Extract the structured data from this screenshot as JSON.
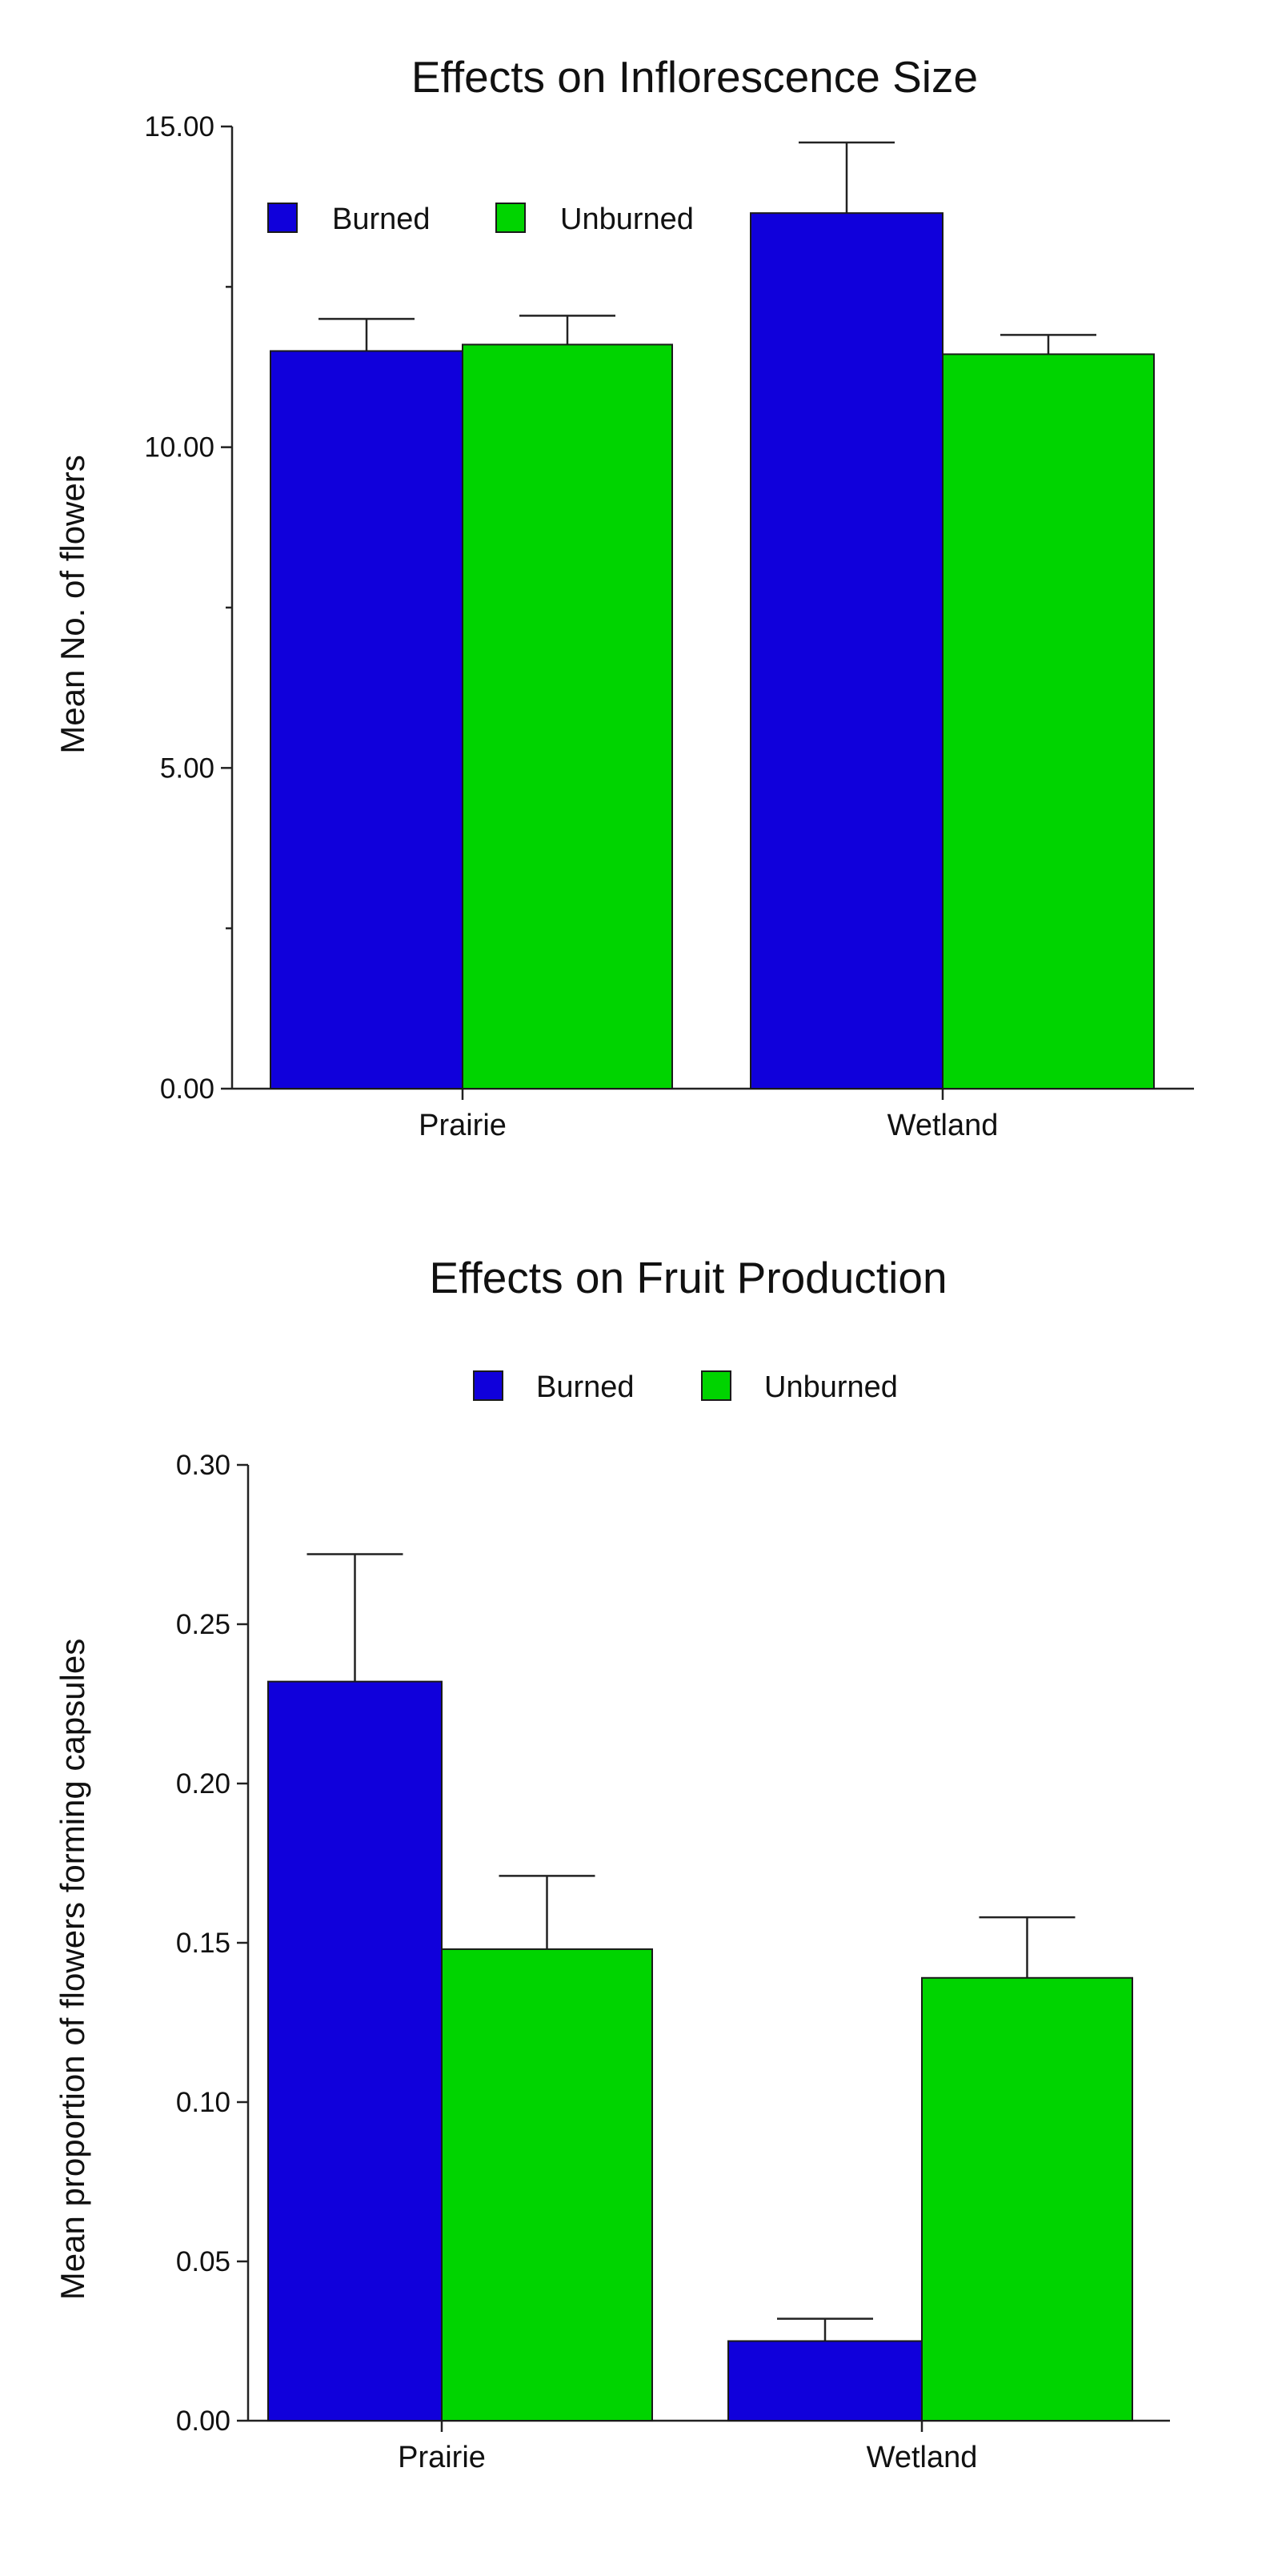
{
  "chart_data": [
    {
      "type": "bar",
      "title": "Effects on Inflorescence Size",
      "ylabel": "Mean No. of flowers",
      "xlabel": "",
      "categories": [
        "Prairie",
        "Wetland"
      ],
      "ylim": [
        0,
        15
      ],
      "yticks": [
        0,
        5,
        10,
        15
      ],
      "ytick_labels": [
        "0.00",
        "5.00",
        "10.00",
        "15.00"
      ],
      "legend_position": "top-left",
      "series": [
        {
          "name": "Burned",
          "color": "#1000db",
          "values": [
            11.5,
            13.65
          ],
          "errors": [
            0.5,
            1.1
          ]
        },
        {
          "name": "Unburned",
          "color": "#00d400",
          "values": [
            11.6,
            11.45
          ],
          "errors": [
            0.45,
            0.3
          ]
        }
      ]
    },
    {
      "type": "bar",
      "title": "Effects on Fruit Production",
      "ylabel": "Mean proportion of flowers forming capsules",
      "xlabel": "",
      "categories": [
        "Prairie",
        "Wetland"
      ],
      "ylim": [
        0,
        0.3
      ],
      "yticks": [
        0,
        0.05,
        0.1,
        0.15,
        0.2,
        0.25,
        0.3
      ],
      "ytick_labels": [
        "0.00",
        "0.05",
        "0.10",
        "0.15",
        "0.20",
        "0.25",
        "0.30"
      ],
      "legend_position": "top-center",
      "series": [
        {
          "name": "Burned",
          "color": "#1000db",
          "values": [
            0.232,
            0.025
          ],
          "errors": [
            0.04,
            0.007
          ]
        },
        {
          "name": "Unburned",
          "color": "#00d400",
          "values": [
            0.148,
            0.139
          ],
          "errors": [
            0.023,
            0.019
          ]
        }
      ]
    }
  ]
}
